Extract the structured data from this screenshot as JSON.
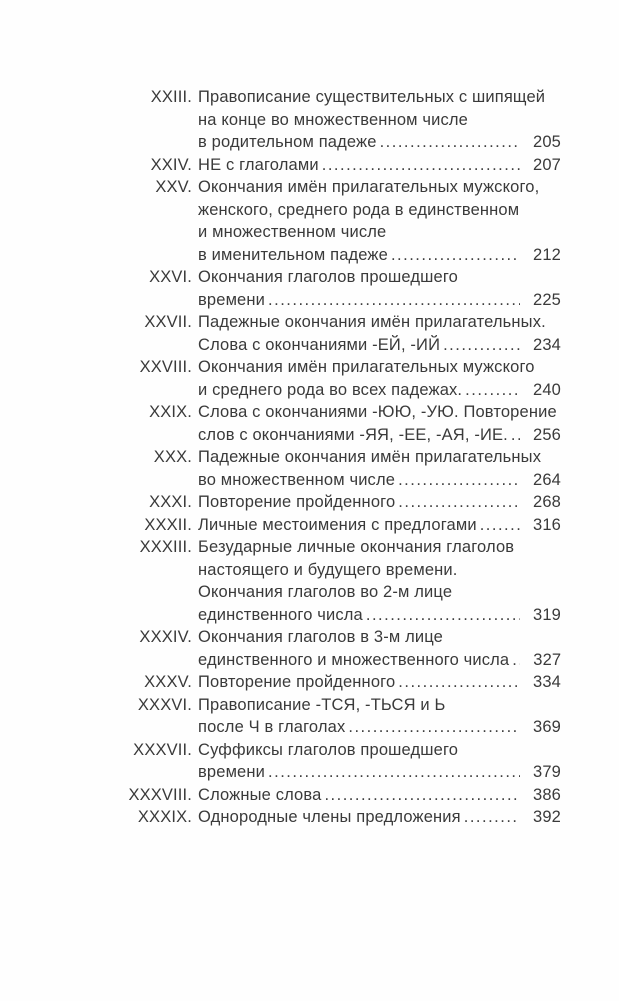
{
  "page": {
    "kind": "book-table-of-contents",
    "language": "ru",
    "background_color": "#fefefe",
    "text_color": "#3a3a3a"
  },
  "toc": {
    "entries": [
      {
        "numeral": "XXIII.",
        "lines": [
          "Правописание существительных с шипящей",
          "на конце во множественном числе",
          "в родительном падеже"
        ],
        "page": "205"
      },
      {
        "numeral": "XXIV.",
        "lines": [
          "НЕ с глаголами"
        ],
        "page": "207"
      },
      {
        "numeral": "XXV.",
        "lines": [
          "Окончания имён прилагательных мужского,",
          "женского, среднего рода в единственном",
          "и множественном числе",
          "в именительном падеже"
        ],
        "page": "212"
      },
      {
        "numeral": "XXVI.",
        "lines": [
          "Окончания глаголов прошедшего",
          "времени"
        ],
        "page": "225"
      },
      {
        "numeral": "XXVII.",
        "lines": [
          "Падежные окончания имён прилагательных.",
          "Слова с окончаниями -ЕЙ, -ИЙ"
        ],
        "page": "234"
      },
      {
        "numeral": "XXVIII.",
        "lines": [
          "Окончания имён прилагательных мужского",
          "и среднего рода во всех падежах."
        ],
        "page": "240"
      },
      {
        "numeral": "XXIX.",
        "lines": [
          "Слова с окончаниями -ЮЮ, -УЮ. Повторение",
          "слов с окончаниями -ЯЯ, -ЕЕ, -АЯ, -ИЕ."
        ],
        "page": "256"
      },
      {
        "numeral": "XXX.",
        "lines": [
          "Падежные окончания имён прилагательных",
          "во множественном числе"
        ],
        "page": "264"
      },
      {
        "numeral": "XXXI.",
        "lines": [
          "Повторение пройденного"
        ],
        "page": "268"
      },
      {
        "numeral": "XXXII.",
        "lines": [
          "Личные местоимения с предлогами"
        ],
        "page": "316"
      },
      {
        "numeral": "XXXIII.",
        "lines": [
          "Безударные личные окончания глаголов",
          "настоящего и будущего времени.",
          "Окончания глаголов во 2-м лице",
          "единственного числа"
        ],
        "page": "319"
      },
      {
        "numeral": "XXXIV.",
        "lines": [
          "Окончания глаголов в 3-м лице",
          "единственного и множественного числа"
        ],
        "page": "327"
      },
      {
        "numeral": "XXXV.",
        "lines": [
          "Повторение пройденного"
        ],
        "page": "334"
      },
      {
        "numeral": "XXXVI.",
        "lines": [
          "Правописание -ТСЯ, -ТЬСЯ и Ь",
          "после Ч в глаголах"
        ],
        "page": "369"
      },
      {
        "numeral": "XXXVII.",
        "lines": [
          "Суффиксы глаголов прошедшего",
          "времени"
        ],
        "page": "379"
      },
      {
        "numeral": "XXXVIII.",
        "lines": [
          "Сложные слова"
        ],
        "page": "386"
      },
      {
        "numeral": "XXXIX.",
        "lines": [
          "Однородные члены предложения"
        ],
        "page": "392"
      }
    ]
  }
}
